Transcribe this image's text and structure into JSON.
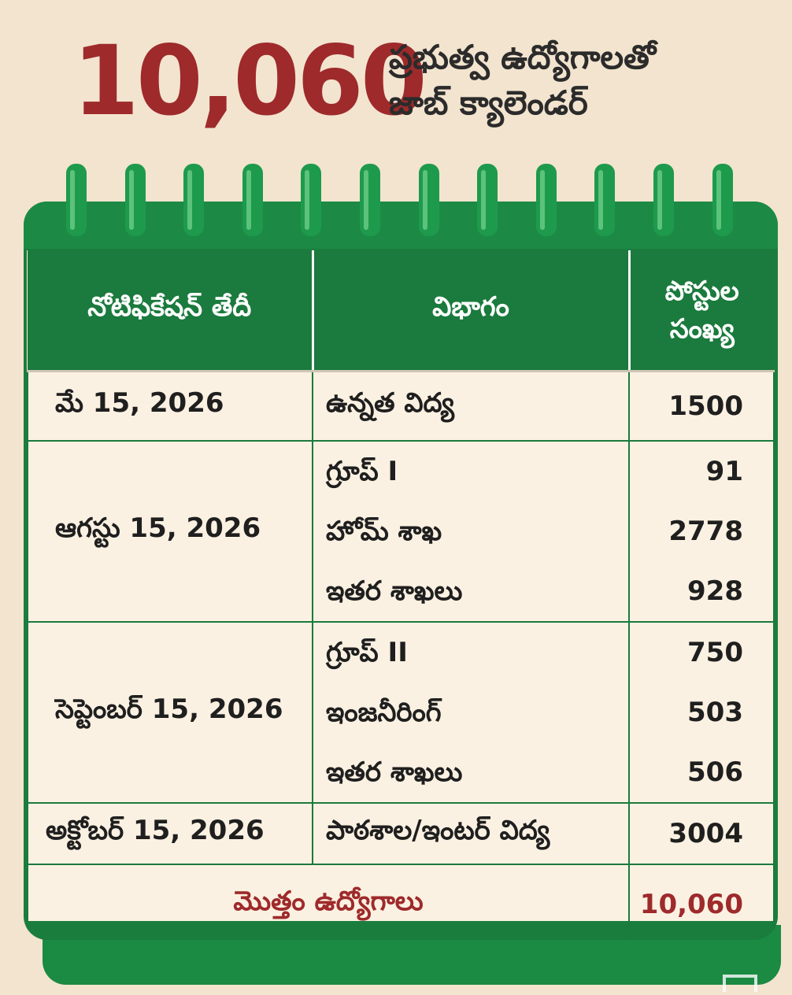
{
  "header": {
    "big_number": "10,060",
    "line1": "ప్రభుత్వ ఉద్యోగాలతో",
    "line2": "జాబ్ క్యాలెండర్"
  },
  "table": {
    "headers": {
      "date": "నోటిఫికేషన్ తేదీ",
      "department": "విభాగం",
      "posts_line1": "పోస్టుల",
      "posts_line2": "సంఖ్య"
    },
    "rows": [
      {
        "date": "మే 15, 2026",
        "items": [
          {
            "dept": "ఉన్నత విద్య",
            "posts": "1500"
          }
        ]
      },
      {
        "date": "ఆగస్టు 15, 2026",
        "items": [
          {
            "dept": "గ్రూప్ I",
            "posts": "91"
          },
          {
            "dept": "హోమ్ శాఖ",
            "posts": "2778"
          },
          {
            "dept": "ఇతర శాఖలు",
            "posts": "928"
          }
        ]
      },
      {
        "date": "సెప్టెంబర్ 15, 2026",
        "items": [
          {
            "dept": "గ్రూప్ II",
            "posts": "750"
          },
          {
            "dept": "ఇంజనీరింగ్",
            "posts": "503"
          },
          {
            "dept": "ఇతర శాఖలు",
            "posts": "506"
          }
        ]
      },
      {
        "date": "అక్టోబర్ 15, 2026",
        "items": [
          {
            "dept": "పాఠశాల/ఇంటర్ విద్య",
            "posts": "3004"
          }
        ]
      }
    ],
    "total": {
      "label": "మొత్తం ఉద్యోగాలు",
      "value": "10,060"
    }
  },
  "colors": {
    "green": "#1b7a3d",
    "maroon": "#9e2a2b",
    "cream": "#fbf1e2",
    "background": "#f3e4cf"
  }
}
